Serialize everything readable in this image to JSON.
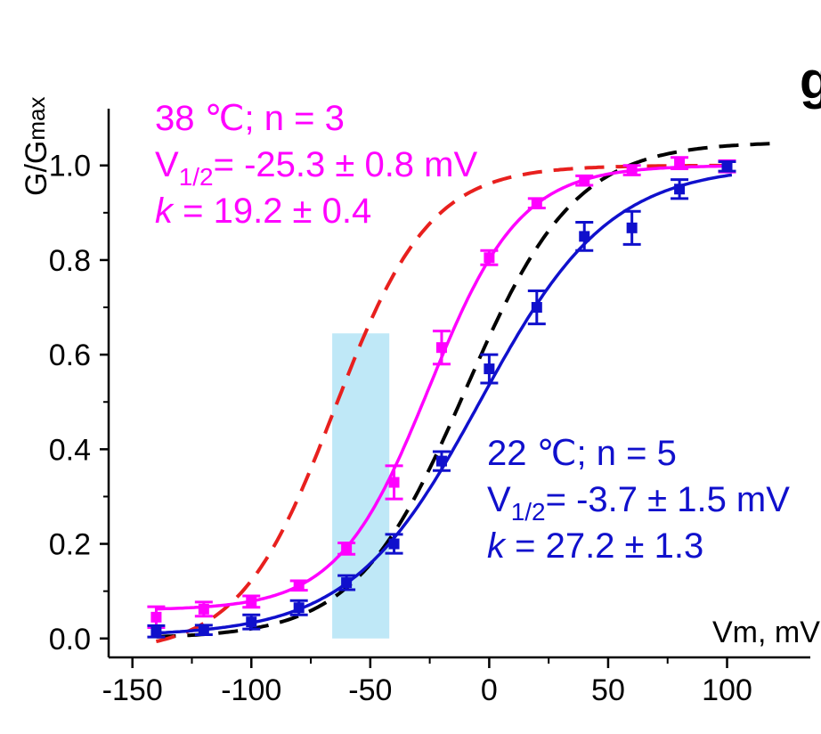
{
  "panel_label": "g",
  "chart_data": {
    "type": "scatter",
    "xlabel": "Vm, mV",
    "ylabel_main": "G/G",
    "ylabel_sub": "max",
    "xlim": [
      -160,
      135
    ],
    "ylim": [
      -0.04,
      1.12
    ],
    "xticks": [
      -150,
      -100,
      -50,
      0,
      50,
      100
    ],
    "xtick_labels": [
      "-150",
      "-100",
      "-50",
      "0",
      "50",
      "100"
    ],
    "yticks": [
      0.0,
      0.2,
      0.4,
      0.6,
      0.8,
      1.0
    ],
    "ytick_labels": [
      "0.0",
      "0.2",
      "0.4",
      "0.6",
      "0.8",
      "1.0"
    ],
    "grid": false,
    "highlight_band": {
      "x": [
        -66,
        -42
      ],
      "y": [
        0,
        0.645
      ],
      "color": "#bfe8f7"
    },
    "series": [
      {
        "color": "#ff00ff",
        "marker": "square",
        "x": [
          -140,
          -120,
          -100,
          -80,
          -60,
          -40,
          -20,
          0,
          20,
          40,
          60,
          80,
          100
        ],
        "y": [
          0.045,
          0.062,
          0.078,
          0.112,
          0.19,
          0.33,
          0.615,
          0.805,
          0.92,
          0.968,
          0.99,
          1.005,
          0.998
        ],
        "err": [
          0.022,
          0.015,
          0.012,
          0.01,
          0.012,
          0.035,
          0.035,
          0.015,
          0.01,
          0.01,
          0.01,
          0.012,
          0.012
        ],
        "fit": {
          "kind": "boltzmann",
          "v_half": -25.3,
          "k": 19.2,
          "min": 0.06,
          "max": 1.0
        },
        "annotation": {
          "line1": "38 ℃; n = 3",
          "line2_main": "V",
          "line2_sub": "1/2",
          "line2_rest": "= -25.3 ± 0.8 mV",
          "line3_k": "k",
          "line3_rest": " = 19.2 ± 0.4"
        }
      },
      {
        "color": "#1010cc",
        "marker": "square",
        "x": [
          -140,
          -120,
          -100,
          -80,
          -60,
          -40,
          -20,
          0,
          20,
          40,
          60,
          80,
          100
        ],
        "y": [
          0.015,
          0.018,
          0.035,
          0.065,
          0.118,
          0.2,
          0.375,
          0.57,
          0.7,
          0.85,
          0.868,
          0.95,
          0.998
        ],
        "err": [
          0.012,
          0.01,
          0.015,
          0.015,
          0.015,
          0.02,
          0.02,
          0.03,
          0.035,
          0.03,
          0.035,
          0.02,
          0.01
        ],
        "fit": {
          "kind": "boltzmann",
          "v_half": -3.7,
          "k": 27.2,
          "min": 0.005,
          "max": 1.0
        },
        "annotation": {
          "line1": "22 ℃; n = 5",
          "line2_main": "V",
          "line2_sub": "1/2",
          "line2_rest": "= -3.7 ± 1.5 mV",
          "line3_k": "k",
          "line3_rest": " = 27.2 ± 1.3"
        }
      }
    ],
    "dashed_curves": [
      {
        "color": "#000000",
        "kind": "boltzmann",
        "v_half": -10,
        "k": 23,
        "min": 0.0,
        "max": 1.05,
        "x_range": [
          -140,
          120
        ]
      },
      {
        "color": "#e8201e",
        "kind": "boltzmann",
        "v_half": -65,
        "k": 20,
        "min": -0.03,
        "max": 1.0,
        "x_range": [
          -140,
          102
        ]
      }
    ]
  }
}
